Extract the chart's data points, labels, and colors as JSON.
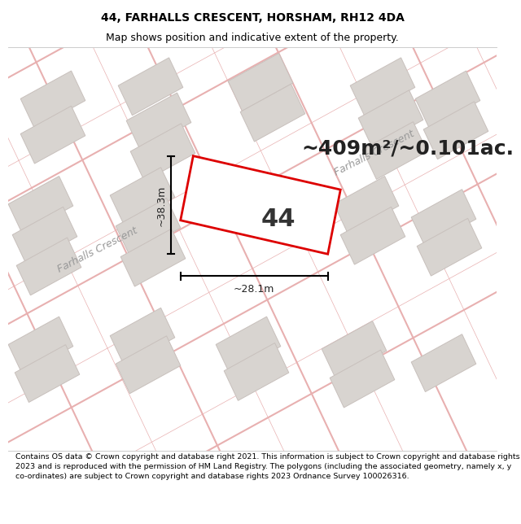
{
  "title_line1": "44, FARHALLS CRESCENT, HORSHAM, RH12 4DA",
  "title_line2": "Map shows position and indicative extent of the property.",
  "area_text": "~409m²/~0.101ac.",
  "plot_label": "44",
  "dim_width": "~28.1m",
  "dim_height": "~38.3m",
  "footer_text": "Contains OS data © Crown copyright and database right 2021. This information is subject to Crown copyright and database rights 2023 and is reproduced with the permission of HM Land Registry. The polygons (including the associated geometry, namely x, y co-ordinates) are subject to Crown copyright and database rights 2023 Ordnance Survey 100026316.",
  "map_bg": "#f5f2f0",
  "road_color": "#e8b0b0",
  "plot_color": "#dd0000",
  "building_fill": "#d8d4d0",
  "building_stroke": "#c8c0bc",
  "street_label": "Farhalls Crescent",
  "title_bg": "#ffffff",
  "footer_bg": "#ffffff",
  "title_fontsize": 10,
  "subtitle_fontsize": 9,
  "area_fontsize": 18,
  "plot_number_fontsize": 22,
  "dim_fontsize": 9,
  "street_fontsize": 9,
  "footer_fontsize": 6.8
}
